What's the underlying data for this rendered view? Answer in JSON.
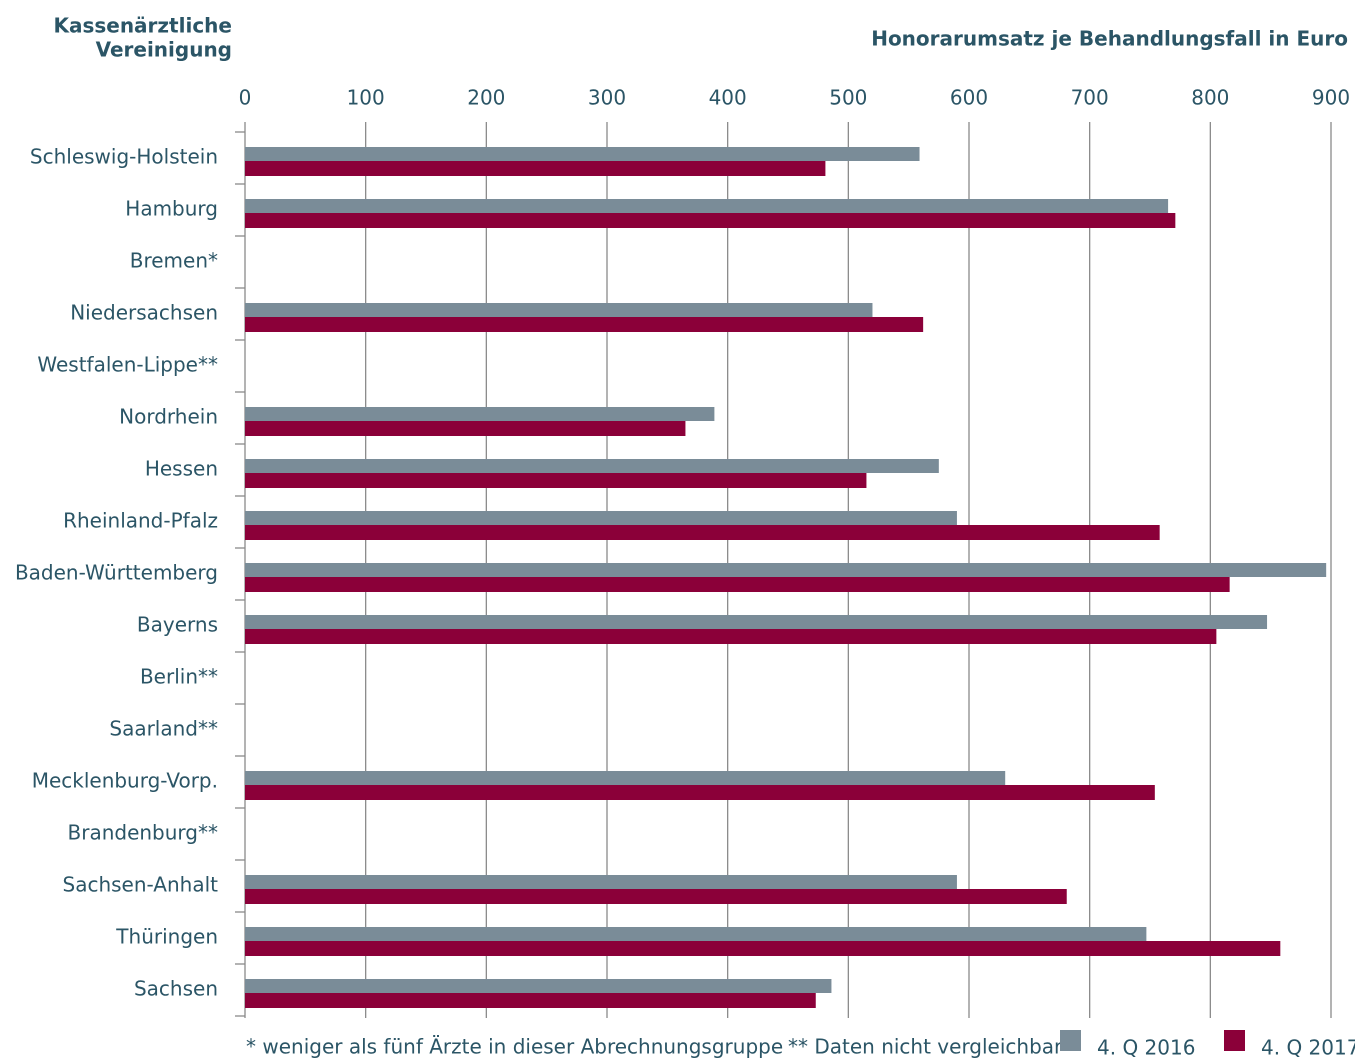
{
  "chart_data": {
    "type": "hbar",
    "y_axis_label": [
      "Kassenärztliche",
      "Vereinigung"
    ],
    "x_axis_label": "Honorarumsatz je Behandlungsfall in Euro",
    "categories": [
      "Schleswig-Holstein",
      "Hamburg",
      "Bremen*",
      "Niedersachsen",
      "Westfalen-Lippe**",
      "Nordrhein",
      "Hessen",
      "Rheinland-Pfalz",
      "Baden-Württemberg",
      "Bayerns",
      "Berlin**",
      "Saarland**",
      "Mecklenburg-Vorp.",
      "Brandenburg**",
      "Sachsen-Anhalt",
      "Thüringen",
      "Sachsen"
    ],
    "series": [
      {
        "name": "4. Q 2016",
        "color": "#7a8c98",
        "values": [
          559,
          765,
          null,
          520,
          null,
          389,
          575,
          590,
          896,
          847,
          null,
          null,
          630,
          null,
          590,
          747,
          486
        ]
      },
      {
        "name": "4. Q 2017",
        "color": "#8b0039",
        "values": [
          481,
          771,
          null,
          562,
          null,
          365,
          515,
          758,
          816,
          805,
          null,
          null,
          754,
          null,
          681,
          858,
          473
        ]
      }
    ],
    "xlim": [
      0,
      900
    ],
    "xticks": [
      0,
      100,
      200,
      300,
      400,
      500,
      600,
      700,
      800,
      900
    ],
    "grid": true,
    "notes": [
      "* weniger als fünf Ärzte in dieser Abrechnungsgruppe",
      "** Daten nicht vergleichbar"
    ]
  }
}
